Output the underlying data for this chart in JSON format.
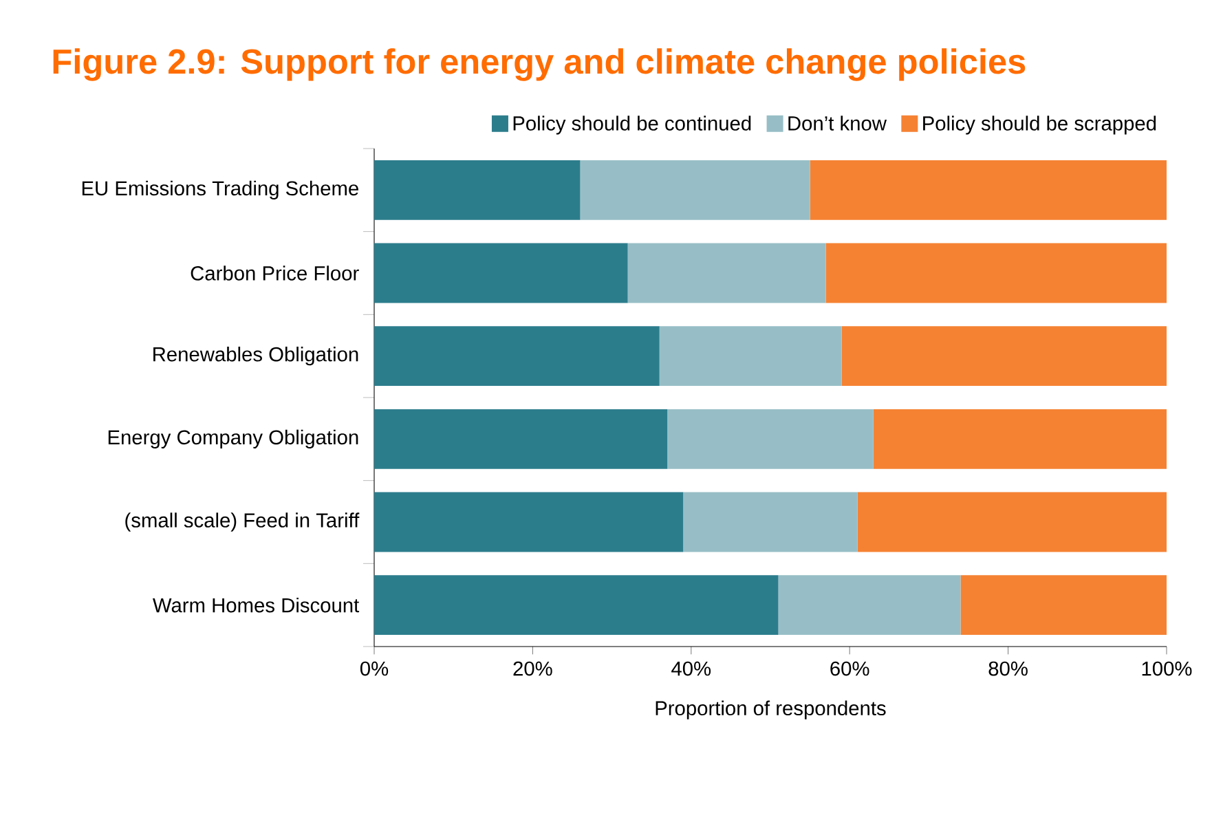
{
  "chart_data": {
    "type": "bar",
    "orientation": "horizontal",
    "stacked": true,
    "title": "Figure 2.9: Support for energy and climate change policies",
    "xlabel": "Proportion of respondents",
    "categories": [
      "EU Emissions Trading Scheme",
      "Carbon Price Floor",
      "Renewables Obligation",
      "Energy Company Obligation",
      "(small scale) Feed in Tariff",
      "Warm Homes Discount"
    ],
    "series": [
      {
        "name": "Policy should be continued",
        "color": "#2c7d8c",
        "values": [
          26,
          32,
          36,
          37,
          39,
          51
        ]
      },
      {
        "name": "Don’t know",
        "color": "#97bec6",
        "values": [
          29,
          25,
          23,
          26,
          22,
          23
        ]
      },
      {
        "name": "Policy should be scrapped",
        "color": "#f58233",
        "values": [
          45,
          43,
          41,
          37,
          39,
          26
        ]
      }
    ],
    "xlim": [
      0,
      100
    ],
    "xticks": [
      {
        "value": 0,
        "label": "0%"
      },
      {
        "value": 20,
        "label": "20%"
      },
      {
        "value": 40,
        "label": "40%"
      },
      {
        "value": 60,
        "label": "60%"
      },
      {
        "value": 80,
        "label": "80%"
      },
      {
        "value": 100,
        "label": "100%"
      }
    ],
    "grid": false,
    "legend": "top right"
  }
}
